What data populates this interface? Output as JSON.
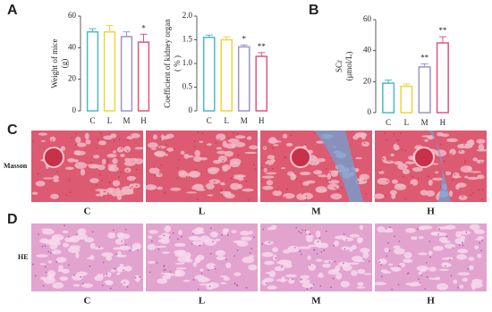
{
  "chart_data": [
    {
      "type": "bar",
      "ylabel": [
        "Weight of mice",
        "(g)"
      ],
      "categories": [
        "C",
        "L",
        "M",
        "H"
      ],
      "values": [
        50,
        50,
        47,
        43.5
      ],
      "errors": [
        2,
        4,
        3,
        5
      ],
      "annotations": [
        null,
        null,
        null,
        "*"
      ],
      "colors": [
        "#4cb8c6",
        "#f0d43a",
        "#9a94c8",
        "#e0557a"
      ],
      "ylim": [
        0,
        60
      ],
      "yticks": [
        0,
        20,
        40,
        60
      ]
    },
    {
      "type": "bar",
      "ylabel": [
        "Coefficient of kidney organ",
        "( % )"
      ],
      "categories": [
        "C",
        "L",
        "M",
        "H"
      ],
      "values": [
        1.55,
        1.5,
        1.35,
        1.15
      ],
      "errors": [
        0.05,
        0.06,
        0.04,
        0.08
      ],
      "annotations": [
        null,
        null,
        "*",
        "**"
      ],
      "colors": [
        "#4cb8c6",
        "#f0d43a",
        "#9a94c8",
        "#e0557a"
      ],
      "ylim": [
        0,
        2
      ],
      "yticks": [
        0,
        0.5,
        {
          "value": 1,
          "label": "1.0"
        },
        1.5,
        {
          "value": 2,
          "label": "2.0"
        }
      ]
    },
    {
      "type": "bar",
      "ylabel": [
        "SCr",
        "(μmol/L)"
      ],
      "categories": [
        "C",
        "L",
        "M",
        "H"
      ],
      "values": [
        19,
        17,
        29.5,
        45
      ],
      "errors": [
        2,
        1.5,
        2,
        4
      ],
      "annotations": [
        null,
        null,
        "**",
        "**"
      ],
      "colors": [
        "#4cb8c6",
        "#f0d43a",
        "#9a94c8",
        "#e0557a"
      ],
      "ylim": [
        0,
        60
      ],
      "yticks": [
        0,
        20,
        40,
        60
      ]
    }
  ],
  "figure": {
    "panel_labels": [
      "A",
      "B",
      "C",
      "D"
    ],
    "rows": [
      {
        "label": "Masson",
        "columns": [
          "C",
          "L",
          "M",
          "H"
        ]
      },
      {
        "label": "HE",
        "columns": [
          "C",
          "L",
          "M",
          "H"
        ]
      }
    ]
  }
}
